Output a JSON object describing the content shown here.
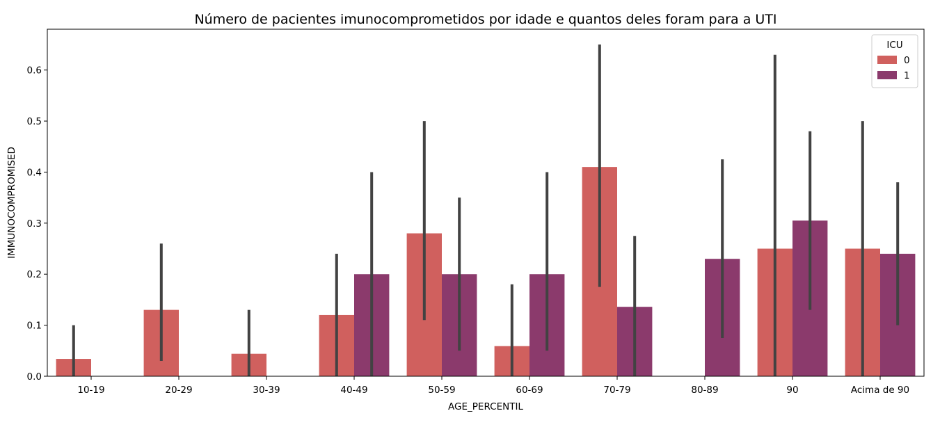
{
  "chart_data": {
    "type": "bar",
    "title": "Número de pacientes imunocomprometidos por idade e quantos deles foram para a UTI",
    "xlabel": "AGE_PERCENTIL",
    "ylabel": "IMMUNOCOMPROMISED",
    "categories": [
      "10-19",
      "20-29",
      "30-39",
      "40-49",
      "50-59",
      "60-69",
      "70-79",
      "80-89",
      "90",
      "Acima de 90"
    ],
    "ylim": [
      0,
      0.68
    ],
    "yticks": [
      "0.0",
      "0.1",
      "0.2",
      "0.3",
      "0.4",
      "0.5",
      "0.6"
    ],
    "legend": {
      "title": "ICU",
      "position": "top-right"
    },
    "series": [
      {
        "name": "0",
        "color": "#d0605e",
        "values": [
          0.034,
          0.13,
          0.044,
          0.12,
          0.28,
          0.059,
          0.41,
          null,
          0.25,
          0.25
        ],
        "ci_low": [
          0.0,
          0.03,
          0.0,
          0.0,
          0.11,
          0.0,
          0.175,
          null,
          0.0,
          0.0
        ],
        "ci_high": [
          0.1,
          0.26,
          0.13,
          0.24,
          0.5,
          0.18,
          0.65,
          null,
          0.63,
          0.5
        ]
      },
      {
        "name": "1",
        "color": "#8b3a6c",
        "values": [
          null,
          null,
          null,
          0.2,
          0.2,
          0.2,
          0.136,
          0.23,
          0.305,
          0.24
        ],
        "ci_low": [
          null,
          null,
          null,
          0.0,
          0.05,
          0.05,
          0.0,
          0.075,
          0.13,
          0.1
        ],
        "ci_high": [
          null,
          null,
          null,
          0.4,
          0.35,
          0.4,
          0.275,
          0.425,
          0.48,
          0.38
        ]
      }
    ],
    "errorbar_color": "#424242",
    "grid": false
  }
}
